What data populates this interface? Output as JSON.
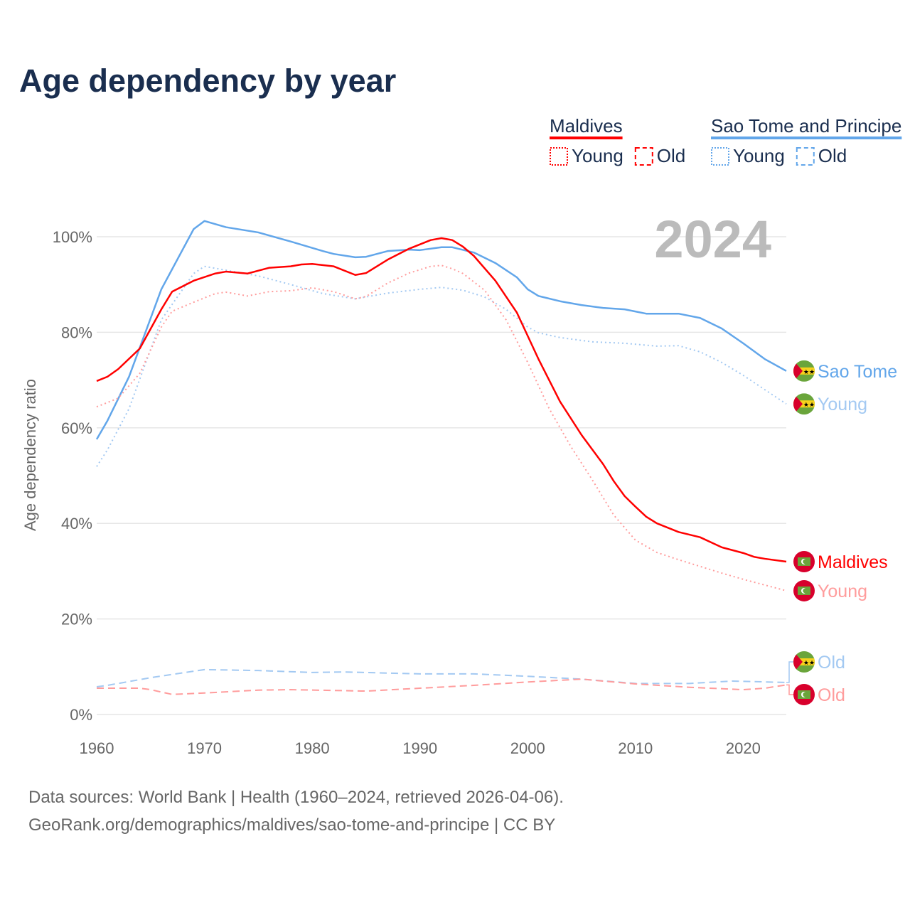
{
  "title": "Age dependency by year",
  "year_label": "2024",
  "legend": {
    "groups": [
      {
        "name": "Maldives",
        "color": "#ff0000",
        "items": [
          "Young",
          "Old"
        ]
      },
      {
        "name": "Sao Tome and Principe",
        "color": "#62a6ea",
        "items": [
          "Young",
          "Old"
        ]
      }
    ]
  },
  "footer": {
    "line1": "Data sources: World Bank | Health (1960–2024, retrieved 2026-04-06).",
    "line2": "GeoRank.org/demographics/maldives/sao-tome-and-principe | CC BY"
  },
  "chart_data": {
    "type": "line",
    "title": "Age dependency by year",
    "xlabel": "",
    "ylabel": "Age dependency ratio",
    "xlim": [
      1960,
      2024
    ],
    "ylim": [
      0,
      110
    ],
    "x_ticks": [
      "1960",
      "1970",
      "1980",
      "1990",
      "2000",
      "2010",
      "2020"
    ],
    "y_ticks": [
      "0%",
      "20%",
      "40%",
      "60%",
      "80%",
      "100%"
    ],
    "series": [
      {
        "name": "Sao Tome",
        "end_label": "Sao Tome",
        "country": "stp",
        "color": "#62a6ea",
        "style": "solid",
        "points": [
          [
            1960,
            57.6
          ],
          [
            1961,
            61.5
          ],
          [
            1963,
            70.7
          ],
          [
            1966,
            89
          ],
          [
            1969,
            101.6
          ],
          [
            1970,
            103.3
          ],
          [
            1972,
            102
          ],
          [
            1975,
            100.9
          ],
          [
            1978,
            99
          ],
          [
            1981,
            97
          ],
          [
            1982,
            96.4
          ],
          [
            1984,
            95.7
          ],
          [
            1985,
            95.8
          ],
          [
            1987,
            97
          ],
          [
            1989,
            97.3
          ],
          [
            1990,
            97.2
          ],
          [
            1992,
            97.8
          ],
          [
            1993,
            97.8
          ],
          [
            1995,
            96.7
          ],
          [
            1997,
            94.5
          ],
          [
            1999,
            91.5
          ],
          [
            2000,
            89
          ],
          [
            2001,
            87.6
          ],
          [
            2003,
            86.5
          ],
          [
            2005,
            85.7
          ],
          [
            2007,
            85.1
          ],
          [
            2009,
            84.8
          ],
          [
            2011,
            83.9
          ],
          [
            2014,
            83.9
          ],
          [
            2016,
            83
          ],
          [
            2018,
            80.8
          ],
          [
            2020,
            77.7
          ],
          [
            2022,
            74.4
          ],
          [
            2024,
            71.9
          ]
        ]
      },
      {
        "name": "Sao Tome Young",
        "end_label": "Young",
        "country": "stp",
        "color": "#a3c9f2",
        "style": "dotted",
        "points": [
          [
            1960,
            51.9
          ],
          [
            1961,
            55.4
          ],
          [
            1963,
            64
          ],
          [
            1966,
            82.6
          ],
          [
            1969,
            92.3
          ],
          [
            1970,
            93.8
          ],
          [
            1972,
            93
          ],
          [
            1975,
            91.8
          ],
          [
            1978,
            90
          ],
          [
            1981,
            88.1
          ],
          [
            1984,
            87
          ],
          [
            1987,
            88.2
          ],
          [
            1990,
            89
          ],
          [
            1992,
            89.4
          ],
          [
            1994,
            88.8
          ],
          [
            1996,
            87.4
          ],
          [
            1998,
            84.8
          ],
          [
            2000,
            81.1
          ],
          [
            2001,
            79.9
          ],
          [
            2003,
            78.9
          ],
          [
            2006,
            78
          ],
          [
            2009,
            77.7
          ],
          [
            2012,
            77.1
          ],
          [
            2014,
            77.2
          ],
          [
            2016,
            75.9
          ],
          [
            2018,
            73.7
          ],
          [
            2020,
            71
          ],
          [
            2022,
            68
          ],
          [
            2024,
            65
          ]
        ]
      },
      {
        "name": "Maldives",
        "end_label": "Maldives",
        "country": "mdv",
        "color": "#ff0000",
        "style": "solid",
        "points": [
          [
            1960,
            69.8
          ],
          [
            1961,
            70.7
          ],
          [
            1962,
            72.3
          ],
          [
            1964,
            76.6
          ],
          [
            1966,
            84.8
          ],
          [
            1967,
            88.5
          ],
          [
            1969,
            90.8
          ],
          [
            1971,
            92.3
          ],
          [
            1972,
            92.7
          ],
          [
            1974,
            92.3
          ],
          [
            1976,
            93.5
          ],
          [
            1978,
            93.8
          ],
          [
            1979,
            94.2
          ],
          [
            1980,
            94.3
          ],
          [
            1982,
            93.8
          ],
          [
            1984,
            92
          ],
          [
            1985,
            92.4
          ],
          [
            1987,
            95.2
          ],
          [
            1989,
            97.5
          ],
          [
            1991,
            99.3
          ],
          [
            1992,
            99.7
          ],
          [
            1993,
            99.3
          ],
          [
            1994,
            97.9
          ],
          [
            1995,
            96
          ],
          [
            1997,
            90.8
          ],
          [
            1999,
            84.1
          ],
          [
            2001,
            74.4
          ],
          [
            2003,
            65.5
          ],
          [
            2005,
            58.5
          ],
          [
            2007,
            52.4
          ],
          [
            2008,
            48.8
          ],
          [
            2009,
            45.7
          ],
          [
            2010,
            43.5
          ],
          [
            2011,
            41.4
          ],
          [
            2012,
            40
          ],
          [
            2014,
            38.2
          ],
          [
            2016,
            37.1
          ],
          [
            2018,
            35
          ],
          [
            2020,
            33.8
          ],
          [
            2021,
            33
          ],
          [
            2022,
            32.6
          ],
          [
            2024,
            32
          ]
        ]
      },
      {
        "name": "Maldives Young",
        "end_label": "Young",
        "country": "mdv",
        "color": "#ff9c9c",
        "style": "dotted",
        "points": [
          [
            1960,
            64.4
          ],
          [
            1962,
            66.2
          ],
          [
            1964,
            71.4
          ],
          [
            1966,
            81.1
          ],
          [
            1967,
            84.4
          ],
          [
            1969,
            86.3
          ],
          [
            1971,
            88.1
          ],
          [
            1972,
            88.4
          ],
          [
            1974,
            87.6
          ],
          [
            1976,
            88.5
          ],
          [
            1978,
            88.7
          ],
          [
            1980,
            89.3
          ],
          [
            1982,
            88.5
          ],
          [
            1984,
            87
          ],
          [
            1985,
            87.5
          ],
          [
            1987,
            90.3
          ],
          [
            1989,
            92.4
          ],
          [
            1991,
            93.8
          ],
          [
            1992,
            94
          ],
          [
            1993,
            93.3
          ],
          [
            1994,
            92.3
          ],
          [
            1996,
            88.8
          ],
          [
            1998,
            82.6
          ],
          [
            2000,
            73.7
          ],
          [
            2002,
            64
          ],
          [
            2004,
            56.1
          ],
          [
            2006,
            49.1
          ],
          [
            2008,
            41.7
          ],
          [
            2010,
            36.5
          ],
          [
            2012,
            33.9
          ],
          [
            2014,
            32.4
          ],
          [
            2016,
            31
          ],
          [
            2018,
            29.6
          ],
          [
            2020,
            28.3
          ],
          [
            2022,
            27.1
          ],
          [
            2024,
            25.9
          ]
        ]
      },
      {
        "name": "Sao Tome Old",
        "end_label": "Old",
        "country": "stp",
        "color": "#a3c9f2",
        "style": "dashed",
        "points": [
          [
            1960,
            5.8
          ],
          [
            1961,
            6.1
          ],
          [
            1965,
            7.7
          ],
          [
            1970,
            9.4
          ],
          [
            1975,
            9.2
          ],
          [
            1980,
            8.8
          ],
          [
            1983,
            8.9
          ],
          [
            1990,
            8.5
          ],
          [
            1995,
            8.5
          ],
          [
            2000,
            8
          ],
          [
            2005,
            7.4
          ],
          [
            2010,
            6.5
          ],
          [
            2015,
            6.5
          ],
          [
            2019,
            7
          ],
          [
            2024,
            6.7
          ]
        ]
      },
      {
        "name": "Maldives Old",
        "end_label": "Old",
        "country": "mdv",
        "color": "#ff9c9c",
        "style": "dashed",
        "points": [
          [
            1960,
            5.5
          ],
          [
            1964,
            5.5
          ],
          [
            1965,
            5.2
          ],
          [
            1967,
            4.2
          ],
          [
            1970,
            4.5
          ],
          [
            1975,
            5.1
          ],
          [
            1978,
            5.2
          ],
          [
            1985,
            4.9
          ],
          [
            1990,
            5.5
          ],
          [
            1995,
            6.1
          ],
          [
            2000,
            6.8
          ],
          [
            2005,
            7.4
          ],
          [
            2010,
            6.4
          ],
          [
            2015,
            5.7
          ],
          [
            2020,
            5.2
          ],
          [
            2022,
            5.5
          ],
          [
            2024,
            6.2
          ]
        ]
      }
    ]
  }
}
